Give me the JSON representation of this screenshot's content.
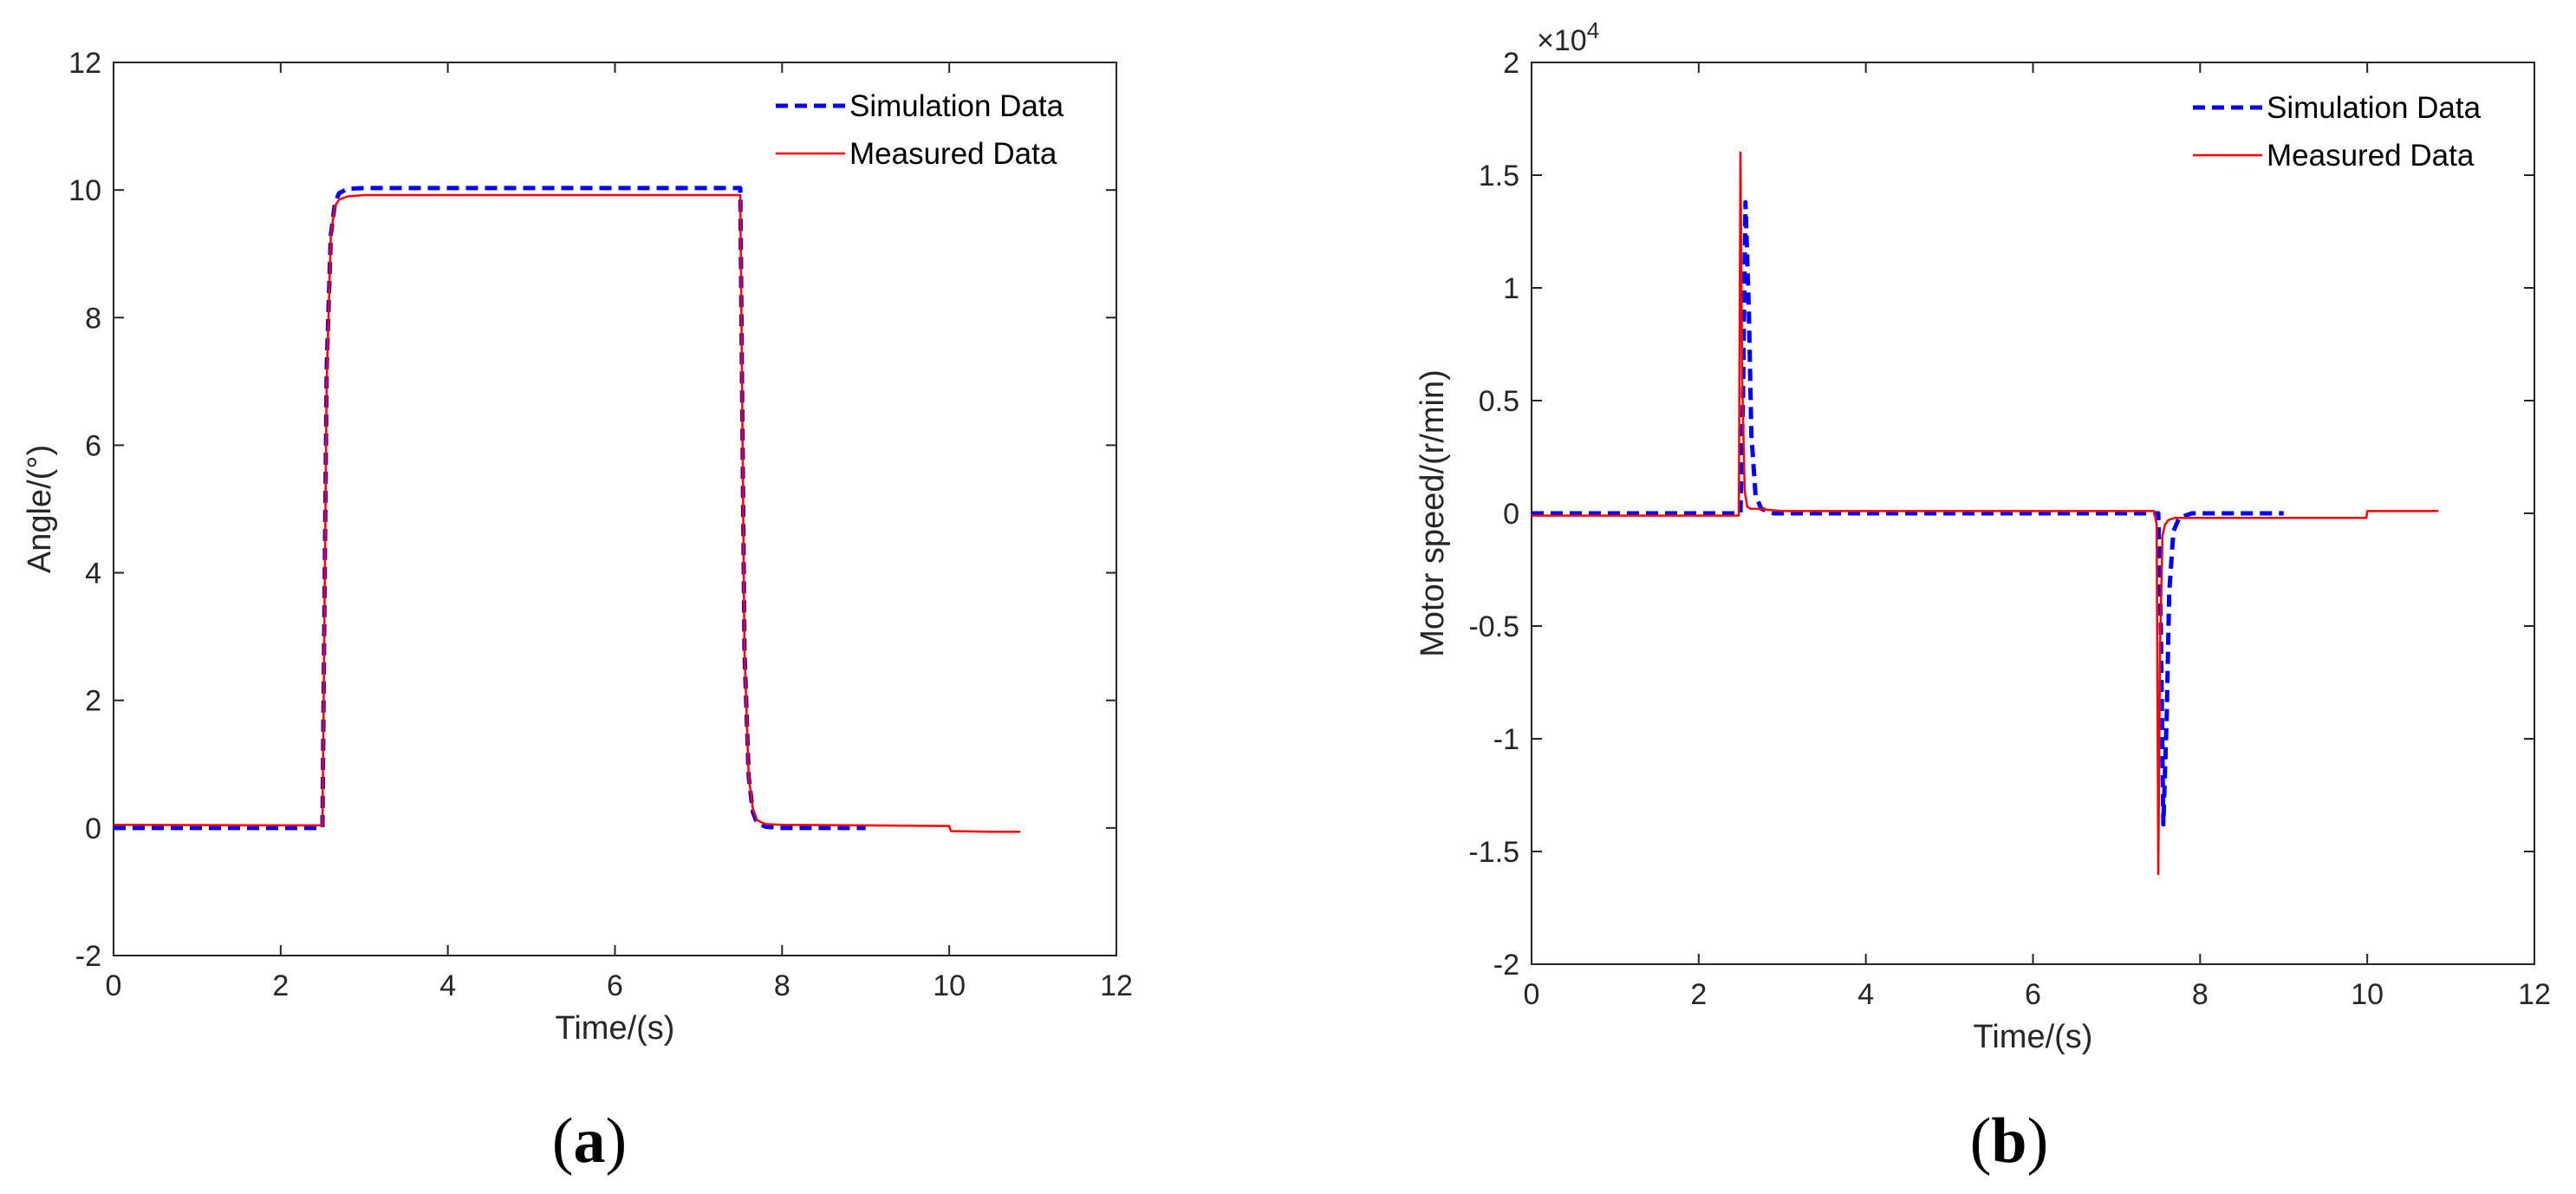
{
  "chart_data": [
    {
      "type": "line",
      "panel_label": {
        "open": "(",
        "letter": "a",
        "close": ")"
      },
      "xlabel": "Time/(s)",
      "ylabel": "Angle/(°)",
      "xlim": [
        0,
        12
      ],
      "ylim": [
        -2,
        12
      ],
      "xticks": [
        0,
        2,
        4,
        6,
        8,
        10,
        12
      ],
      "yticks": [
        -2,
        0,
        2,
        4,
        6,
        8,
        10,
        12
      ],
      "grid": false,
      "legend_position": "top-right",
      "series": [
        {
          "name": "Simulation Data",
          "color": "#0000ff",
          "style": "dashed",
          "x": [
            0,
            2.5,
            2.52,
            2.55,
            2.6,
            2.65,
            2.7,
            2.8,
            3.0,
            7.5,
            7.52,
            7.55,
            7.6,
            7.65,
            7.7,
            7.8,
            8.0,
            9.0
          ],
          "y": [
            0,
            0,
            3.0,
            7.2,
            9.3,
            9.8,
            9.95,
            10.02,
            10.03,
            10.03,
            7.0,
            2.8,
            0.8,
            0.25,
            0.08,
            0.02,
            0,
            0
          ]
        },
        {
          "name": "Measured Data",
          "color": "#ff0000",
          "style": "solid",
          "x": [
            0,
            2.0,
            2.5,
            2.52,
            2.55,
            2.6,
            2.65,
            2.7,
            2.8,
            3.0,
            5.0,
            7.5,
            7.52,
            7.55,
            7.6,
            7.65,
            7.7,
            7.8,
            8.0,
            9.0,
            10.0,
            10.02,
            10.5,
            10.85
          ],
          "y": [
            0.05,
            0.04,
            0.04,
            2.8,
            7.0,
            9.3,
            9.75,
            9.85,
            9.9,
            9.92,
            9.92,
            9.92,
            7.0,
            2.8,
            0.8,
            0.3,
            0.12,
            0.06,
            0.05,
            0.04,
            0.03,
            -0.05,
            -0.06,
            -0.06
          ]
        }
      ]
    },
    {
      "type": "line",
      "panel_label": {
        "open": "(",
        "letter": "b",
        "close": ")"
      },
      "xlabel": "Time/(s)",
      "ylabel": "Motor speed/(r/min)",
      "y_exponent": {
        "base": "×10",
        "power": "4"
      },
      "xlim": [
        0,
        12
      ],
      "ylim": [
        -2,
        2
      ],
      "xticks": [
        0,
        2,
        4,
        6,
        8,
        10,
        12
      ],
      "yticks": [
        -2,
        -1.5,
        -1,
        -0.5,
        0,
        0.5,
        1,
        1.5,
        2
      ],
      "grid": false,
      "legend_position": "top-right",
      "series": [
        {
          "name": "Simulation Data",
          "color": "#0000ff",
          "style": "dashed",
          "x": [
            0,
            2.5,
            2.53,
            2.56,
            2.6,
            2.63,
            2.68,
            2.75,
            2.9,
            7.5,
            7.53,
            7.56,
            7.6,
            7.63,
            7.68,
            7.75,
            7.9,
            9.0
          ],
          "y": [
            0,
            0,
            0.5,
            1.38,
            0.9,
            0.35,
            0.08,
            0.02,
            0,
            0,
            -0.5,
            -1.38,
            -0.9,
            -0.35,
            -0.08,
            -0.02,
            0,
            0
          ]
        },
        {
          "name": "Measured Data",
          "color": "#ff0000",
          "style": "solid",
          "x": [
            0,
            2.0,
            2.48,
            2.5,
            2.52,
            2.55,
            2.58,
            2.62,
            2.7,
            3.0,
            5.0,
            7.45,
            7.48,
            7.5,
            7.52,
            7.55,
            7.58,
            7.62,
            7.7,
            8.0,
            9.0,
            9.99,
            10.0,
            10.5,
            10.85
          ],
          "y": [
            -0.01,
            -0.01,
            -0.01,
            1.6,
            0.6,
            0.1,
            0.03,
            0.02,
            0.02,
            0.01,
            0.01,
            0.01,
            -0.05,
            -1.6,
            -0.6,
            -0.1,
            -0.05,
            -0.03,
            -0.02,
            -0.02,
            -0.02,
            -0.02,
            0.01,
            0.01,
            0.01
          ]
        }
      ]
    }
  ]
}
